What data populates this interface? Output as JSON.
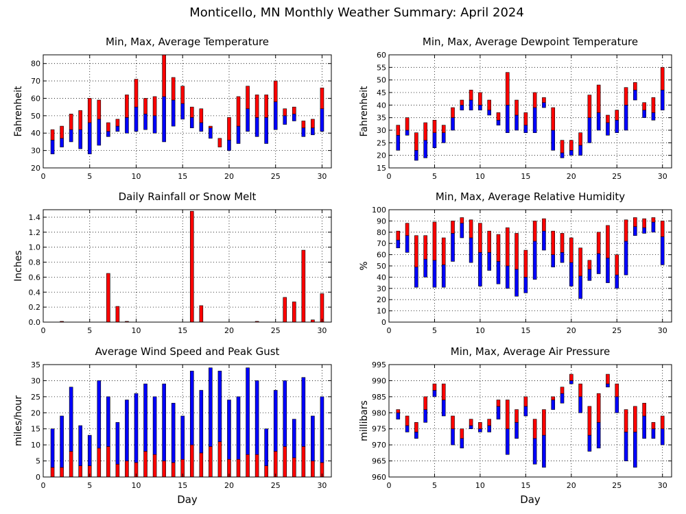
{
  "title": "Monticello, MN Monthly Weather Summary: April 2024",
  "colors": {
    "max": "#ff0000",
    "min": "#0000ff",
    "border": "#000000"
  },
  "chart_data": [
    {
      "type": "bar",
      "title": "Min, Max, Average Temperature",
      "ylabel": "Fahrenheit",
      "xlabel": "",
      "xlim": [
        0,
        31
      ],
      "ylim": [
        20,
        85
      ],
      "xticks": [
        0,
        5,
        10,
        15,
        20,
        25,
        30
      ],
      "yticks": [
        20,
        30,
        40,
        50,
        60,
        70,
        80
      ],
      "ytick_labels": [
        "20",
        "30",
        "40",
        "50",
        "60",
        "70",
        "80"
      ],
      "grid": true,
      "kind": "range",
      "x": [
        1,
        2,
        3,
        4,
        5,
        6,
        7,
        8,
        9,
        10,
        11,
        12,
        13,
        14,
        15,
        16,
        17,
        18,
        19,
        20,
        21,
        22,
        23,
        24,
        25,
        26,
        27,
        28,
        29,
        30
      ],
      "series": [
        {
          "role": "min",
          "values": [
            28,
            32,
            35,
            31,
            28,
            33,
            38,
            41,
            40,
            41,
            42,
            40,
            35,
            44,
            48,
            43,
            41,
            37,
            34,
            30,
            34,
            41,
            38,
            34,
            42,
            45,
            47,
            38,
            39,
            41
          ]
        },
        {
          "role": "avg",
          "values": [
            36,
            37,
            42,
            42,
            46,
            48,
            41,
            44,
            49,
            55,
            51,
            50,
            61,
            59,
            57,
            49,
            46,
            43,
            32,
            36,
            44,
            54,
            49,
            49,
            58,
            50,
            51,
            43,
            43,
            54
          ]
        },
        {
          "role": "max",
          "values": [
            42,
            44,
            51,
            53,
            60,
            59,
            46,
            48,
            62,
            71,
            60,
            61,
            85,
            72,
            67,
            55,
            54,
            44,
            37,
            49,
            61,
            67,
            62,
            62,
            70,
            54,
            55,
            47,
            48,
            66
          ]
        }
      ]
    },
    {
      "type": "bar",
      "title": "Min, Max, Average Dewpoint Temperature",
      "ylabel": "Fahrenheit",
      "xlabel": "",
      "xlim": [
        0,
        31
      ],
      "ylim": [
        15,
        60
      ],
      "xticks": [
        0,
        5,
        10,
        15,
        20,
        25,
        30
      ],
      "yticks": [
        15,
        20,
        25,
        30,
        35,
        40,
        45,
        50,
        55,
        60
      ],
      "ytick_labels": [
        "15",
        "20",
        "25",
        "30",
        "35",
        "40",
        "45",
        "50",
        "55",
        "60"
      ],
      "grid": true,
      "kind": "range",
      "x": [
        1,
        2,
        3,
        4,
        5,
        6,
        7,
        8,
        9,
        10,
        11,
        12,
        13,
        14,
        15,
        16,
        17,
        18,
        19,
        20,
        21,
        22,
        23,
        24,
        25,
        26,
        27,
        28,
        29,
        30
      ],
      "series": [
        {
          "role": "min",
          "values": [
            22,
            28,
            18,
            19,
            23,
            25,
            30,
            38,
            38,
            38,
            36,
            32,
            29,
            30,
            29,
            29,
            39,
            22,
            19,
            20,
            20,
            25,
            30,
            28,
            29,
            30,
            42,
            35,
            34,
            38
          ]
        },
        {
          "role": "avg",
          "values": [
            28,
            30,
            22,
            26,
            29,
            29,
            35,
            40,
            42,
            40,
            38,
            34,
            40,
            36,
            32,
            39,
            41,
            30,
            21,
            22,
            24,
            35,
            37,
            33,
            34,
            40,
            46,
            38,
            37,
            46
          ]
        },
        {
          "role": "max",
          "values": [
            32,
            35,
            29,
            33,
            34,
            32,
            39,
            42,
            46,
            45,
            42,
            37,
            53,
            42,
            37,
            45,
            43,
            39,
            26,
            26,
            29,
            44,
            48,
            36,
            38,
            47,
            49,
            41,
            43,
            55
          ]
        }
      ]
    },
    {
      "type": "bar",
      "title": "Daily Rainfall or Snow Melt",
      "ylabel": "Inches",
      "xlabel": "",
      "xlim": [
        0,
        31
      ],
      "ylim": [
        0,
        1.5
      ],
      "xticks": [
        0,
        5,
        10,
        15,
        20,
        25,
        30
      ],
      "yticks": [
        0,
        0.2,
        0.4,
        0.6,
        0.8,
        1.0,
        1.2,
        1.4
      ],
      "ytick_labels": [
        "0.0",
        "0.2",
        "0.4",
        "0.6",
        "0.8",
        "1.0",
        "1.2",
        "1.4"
      ],
      "grid": true,
      "kind": "single",
      "x": [
        1,
        2,
        3,
        4,
        5,
        6,
        7,
        8,
        9,
        10,
        11,
        12,
        13,
        14,
        15,
        16,
        17,
        18,
        19,
        20,
        21,
        22,
        23,
        24,
        25,
        26,
        27,
        28,
        29,
        30
      ],
      "series": [
        {
          "role": "max",
          "values": [
            0,
            0.01,
            0,
            0,
            0,
            0,
            0.65,
            0.21,
            0.01,
            0,
            0,
            0,
            0,
            0,
            0,
            1.48,
            0.22,
            0,
            0,
            0,
            0,
            0,
            0.01,
            0,
            0,
            0.33,
            0.27,
            0.96,
            0.03,
            0.38
          ]
        }
      ]
    },
    {
      "type": "bar",
      "title": "Min, Max, Average Relative Humidity",
      "ylabel": "%",
      "xlabel": "",
      "xlim": [
        0,
        31
      ],
      "ylim": [
        0,
        100
      ],
      "xticks": [
        0,
        5,
        10,
        15,
        20,
        25,
        30
      ],
      "yticks": [
        0,
        10,
        20,
        30,
        40,
        50,
        60,
        70,
        80,
        90,
        100
      ],
      "ytick_labels": [
        "0",
        "10",
        "20",
        "30",
        "40",
        "50",
        "60",
        "70",
        "80",
        "90",
        "100"
      ],
      "grid": true,
      "kind": "range",
      "x": [
        1,
        2,
        3,
        4,
        5,
        6,
        7,
        8,
        9,
        10,
        11,
        12,
        13,
        14,
        15,
        16,
        17,
        18,
        19,
        20,
        21,
        22,
        23,
        24,
        25,
        26,
        27,
        28,
        29,
        30
      ],
      "series": [
        {
          "role": "min",
          "values": [
            66,
            62,
            31,
            40,
            31,
            31,
            54,
            75,
            53,
            32,
            46,
            34,
            30,
            23,
            26,
            38,
            64,
            49,
            53,
            32,
            21,
            37,
            43,
            35,
            30,
            42,
            77,
            79,
            80,
            51
          ]
        },
        {
          "role": "avg",
          "values": [
            73,
            77,
            49,
            56,
            55,
            51,
            79,
            88,
            75,
            62,
            62,
            54,
            50,
            47,
            40,
            72,
            81,
            60,
            62,
            53,
            41,
            47,
            61,
            57,
            42,
            72,
            85,
            84,
            89,
            76
          ]
        },
        {
          "role": "max",
          "values": [
            81,
            88,
            77,
            77,
            89,
            75,
            90,
            93,
            91,
            88,
            81,
            78,
            84,
            79,
            64,
            90,
            92,
            81,
            79,
            75,
            66,
            55,
            80,
            86,
            60,
            91,
            93,
            92,
            93,
            90
          ]
        }
      ]
    },
    {
      "type": "bar",
      "title": "Average Wind Speed and Peak Gust",
      "ylabel": "miles/hour",
      "xlabel": "Day",
      "xlim": [
        0,
        31
      ],
      "ylim": [
        0,
        35
      ],
      "xticks": [
        0,
        5,
        10,
        15,
        20,
        25,
        30
      ],
      "yticks": [
        0,
        5,
        10,
        15,
        20,
        25,
        30,
        35
      ],
      "ytick_labels": [
        "0",
        "5",
        "10",
        "15",
        "20",
        "25",
        "30",
        "35"
      ],
      "grid": true,
      "kind": "wind",
      "x": [
        1,
        2,
        3,
        4,
        5,
        6,
        7,
        8,
        9,
        10,
        11,
        12,
        13,
        14,
        15,
        16,
        17,
        18,
        19,
        20,
        21,
        22,
        23,
        24,
        25,
        26,
        27,
        28,
        29,
        30
      ],
      "series": [
        {
          "role": "avg",
          "values": [
            3,
            3,
            8,
            3.5,
            3.5,
            9,
            9.5,
            4,
            5,
            4.5,
            8,
            7,
            5,
            4.5,
            5.5,
            10,
            7.5,
            9.5,
            11,
            5.5,
            5.5,
            7,
            7,
            3.5,
            8,
            9.5,
            6,
            9.5,
            5,
            4.5
          ]
        },
        {
          "role": "gust",
          "values": [
            15,
            19,
            28,
            16,
            13,
            30,
            25,
            17,
            24,
            26,
            29,
            25,
            29,
            23,
            19,
            33,
            27,
            34,
            33,
            24,
            25,
            34,
            30,
            15,
            27,
            30,
            18,
            31,
            19,
            25
          ]
        }
      ]
    },
    {
      "type": "bar",
      "title": "Min, Max, Average Air Pressure",
      "ylabel": "millibars",
      "xlabel": "Day",
      "xlim": [
        0,
        31
      ],
      "ylim": [
        960,
        995
      ],
      "xticks": [
        0,
        5,
        10,
        15,
        20,
        25,
        30
      ],
      "yticks": [
        960,
        965,
        970,
        975,
        980,
        985,
        990,
        995
      ],
      "ytick_labels": [
        "960",
        "965",
        "970",
        "975",
        "980",
        "985",
        "990",
        "995"
      ],
      "grid": true,
      "kind": "range",
      "x": [
        1,
        2,
        3,
        4,
        5,
        6,
        7,
        8,
        9,
        10,
        11,
        12,
        13,
        14,
        15,
        16,
        17,
        18,
        19,
        20,
        21,
        22,
        23,
        24,
        25,
        26,
        27,
        28,
        29,
        30
      ],
      "series": [
        {
          "role": "min",
          "values": [
            978,
            974,
            972,
            977,
            985,
            979,
            970,
            969,
            975,
            974,
            974,
            978,
            967,
            972,
            979,
            964,
            963,
            981,
            983,
            989,
            980,
            968,
            969,
            988,
            980,
            965,
            963,
            972,
            972,
            970
          ]
        },
        {
          "role": "avg",
          "values": [
            980,
            976,
            974,
            981,
            987,
            984,
            975,
            972,
            976,
            975,
            976,
            982,
            975,
            977,
            982,
            972,
            973,
            984,
            986,
            990,
            985,
            973,
            977,
            989,
            985,
            974,
            974,
            979,
            975,
            975
          ]
        },
        {
          "role": "max",
          "values": [
            981,
            979,
            977,
            985,
            989,
            989,
            979,
            975,
            978,
            977,
            978,
            984,
            984,
            981,
            985,
            978,
            981,
            985,
            988,
            992,
            989,
            982,
            986,
            992,
            989,
            981,
            982,
            983,
            977,
            979
          ]
        }
      ]
    }
  ]
}
